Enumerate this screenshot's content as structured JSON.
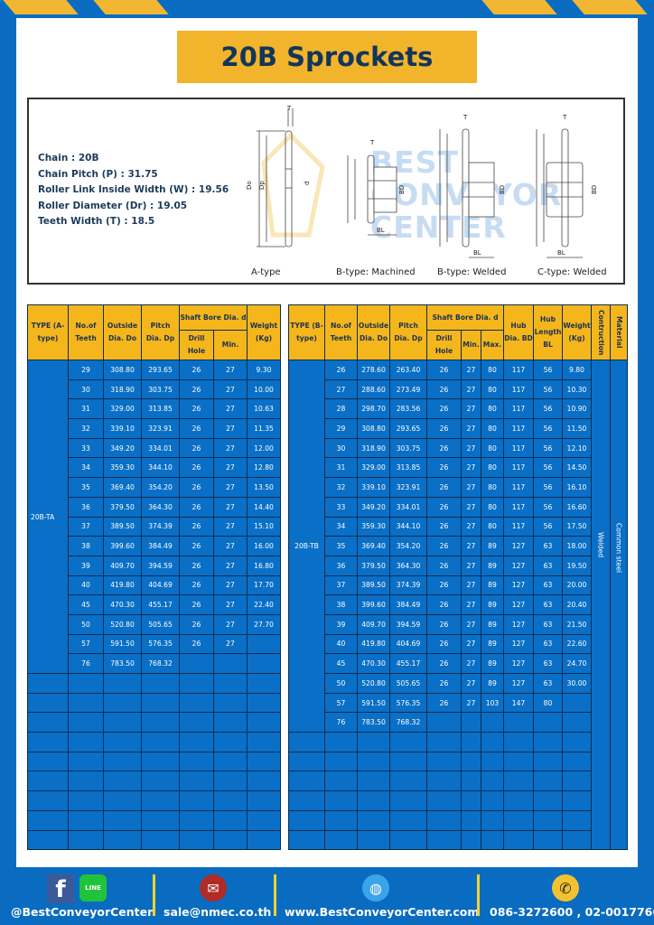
{
  "title": "20B Sprockets",
  "specs": [
    "Chain  : 20B",
    "Chain Pitch (P)  :  31.75",
    "Roller Link Inside Width (W)  :  19.56",
    "Roller Diameter (Dr)  : 19.05",
    "Teeth Width (T)  :  18.5"
  ],
  "diagram": {
    "captions": [
      "A-type",
      "B-type: Machined",
      "B-type: Welded",
      "C-type: Welded"
    ],
    "labels": {
      "T": "T",
      "Do": "Do",
      "Dp": "Dp",
      "d": "d",
      "BD": "BD",
      "BL": "BL"
    },
    "watermark": "BEST CONVEYOR CENTER"
  },
  "table_a": {
    "headers": {
      "type": "TYPE (A-type)",
      "teeth": "No.of Teeth",
      "do": "Outside Dia. Do",
      "dp": "Pitch Dia. Dp",
      "bore": "Shaft Bore Dia. d",
      "drill": "Drill Hole",
      "min": "Min.",
      "weight": "Weight (Kg)"
    },
    "type_value": "20B-TA",
    "rows": [
      [
        "29",
        "308.80",
        "293.65",
        "26",
        "27",
        "9.30"
      ],
      [
        "30",
        "318.90",
        "303.75",
        "26",
        "27",
        "10.00"
      ],
      [
        "31",
        "329.00",
        "313.85",
        "26",
        "27",
        "10.63"
      ],
      [
        "32",
        "339.10",
        "323.91",
        "26",
        "27",
        "11.35"
      ],
      [
        "33",
        "349.20",
        "334.01",
        "26",
        "27",
        "12.00"
      ],
      [
        "34",
        "359.30",
        "344.10",
        "26",
        "27",
        "12.80"
      ],
      [
        "35",
        "369.40",
        "354.20",
        "26",
        "27",
        "13.50"
      ],
      [
        "36",
        "379.50",
        "364.30",
        "26",
        "27",
        "14.40"
      ],
      [
        "37",
        "389.50",
        "374.39",
        "26",
        "27",
        "15.10"
      ],
      [
        "38",
        "399.60",
        "384.49",
        "26",
        "27",
        "16.00"
      ],
      [
        "39",
        "409.70",
        "394.59",
        "26",
        "27",
        "16.80"
      ],
      [
        "40",
        "419.80",
        "404.69",
        "26",
        "27",
        "17.70"
      ],
      [
        "45",
        "470.30",
        "455.17",
        "26",
        "27",
        "22.40"
      ],
      [
        "50",
        "520.80",
        "505.65",
        "26",
        "27",
        "27.70"
      ],
      [
        "57",
        "591.50",
        "576.35",
        "26",
        "27",
        ""
      ],
      [
        "76",
        "783.50",
        "768.32",
        "",
        "",
        ""
      ]
    ]
  },
  "table_b": {
    "headers": {
      "type": "TYPE (B-type)",
      "teeth": "No.of Teeth",
      "do": "Outside Dia. Do",
      "dp": "Pitch Dia. Dp",
      "bore": "Shaft Bore Dia. d",
      "drill": "Drill Hole",
      "min": "Min.",
      "max": "Max.",
      "bd": "Hub Dia. BD",
      "bl": "Hub Length BL",
      "weight": "Weight (Kg)",
      "construction": "Contruction",
      "material": "Material"
    },
    "type_value": "20B-TB",
    "construction_value": "Welded",
    "material_value": "Common  steel",
    "rows": [
      [
        "26",
        "278.60",
        "263.40",
        "26",
        "27",
        "80",
        "117",
        "56",
        "9.80"
      ],
      [
        "27",
        "288.60",
        "273.49",
        "26",
        "27",
        "80",
        "117",
        "56",
        "10.30"
      ],
      [
        "28",
        "298.70",
        "283.56",
        "26",
        "27",
        "80",
        "117",
        "56",
        "10.90"
      ],
      [
        "29",
        "308.80",
        "293.65",
        "26",
        "27",
        "80",
        "117",
        "56",
        "11.50"
      ],
      [
        "30",
        "318.90",
        "303.75",
        "26",
        "27",
        "80",
        "117",
        "56",
        "12.10"
      ],
      [
        "31",
        "329.00",
        "313.85",
        "26",
        "27",
        "80",
        "117",
        "56",
        "14.50"
      ],
      [
        "32",
        "339.10",
        "323.91",
        "26",
        "27",
        "80",
        "117",
        "56",
        "16.10"
      ],
      [
        "33",
        "349.20",
        "334.01",
        "26",
        "27",
        "80",
        "117",
        "56",
        "16.60"
      ],
      [
        "34",
        "359.30",
        "344.10",
        "26",
        "27",
        "80",
        "117",
        "56",
        "17.50"
      ],
      [
        "35",
        "369.40",
        "354.20",
        "26",
        "27",
        "89",
        "127",
        "63",
        "18.00"
      ],
      [
        "36",
        "379.50",
        "364.30",
        "26",
        "27",
        "89",
        "127",
        "63",
        "19.50"
      ],
      [
        "37",
        "389.50",
        "374.39",
        "26",
        "27",
        "89",
        "127",
        "63",
        "20.00"
      ],
      [
        "38",
        "399.60",
        "384.49",
        "26",
        "27",
        "89",
        "127",
        "63",
        "20.40"
      ],
      [
        "39",
        "409.70",
        "394.59",
        "26",
        "27",
        "89",
        "127",
        "63",
        "21.50"
      ],
      [
        "40",
        "419.80",
        "404.69",
        "26",
        "27",
        "89",
        "127",
        "63",
        "22.60"
      ],
      [
        "45",
        "470.30",
        "455.17",
        "26",
        "27",
        "89",
        "127",
        "63",
        "24.70"
      ],
      [
        "50",
        "520.80",
        "505.65",
        "26",
        "27",
        "89",
        "127",
        "63",
        "30.00"
      ],
      [
        "57",
        "591.50",
        "576.35",
        "26",
        "27",
        "103",
        "147",
        "80",
        ""
      ],
      [
        "76",
        "783.50",
        "768.32",
        "",
        "",
        "",
        "",
        "",
        ""
      ]
    ]
  },
  "footer": {
    "social": "@BestConveyorCenter",
    "email": "sale@nmec.co.th",
    "website": "www.BestConveyorCenter.com",
    "phone": "086-3272600 , 02-0017766",
    "icons": [
      "facebook-icon",
      "line-icon",
      "mail-icon",
      "globe-icon",
      "phone-icon"
    ],
    "line_label": "LINE",
    "colors": {
      "blue": "#0a6cc0",
      "yellow": "#f2b42a"
    }
  }
}
